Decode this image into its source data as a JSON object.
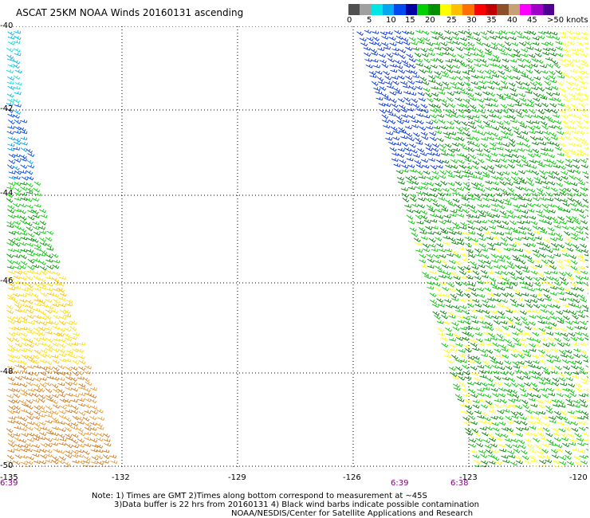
{
  "title": "ASCAT 25KM NOAA Winds 20160131 ascending",
  "legend": {
    "colors": [
      "#505050",
      "#a0a0a0",
      "#00e6e6",
      "#00a8f0",
      "#0048f0",
      "#0000a0",
      "#00d000",
      "#009000",
      "#ffff00",
      "#ffc000",
      "#ff7000",
      "#ff0000",
      "#c00000",
      "#8c5028",
      "#c8a078",
      "#ff00ff",
      "#a000c8",
      "#500090"
    ],
    "ticks": [
      "0",
      "5",
      "10",
      "15",
      "20",
      "25",
      "30",
      "35",
      "40",
      "45",
      ">50 knots"
    ]
  },
  "map": {
    "lat_labels": [
      "-40",
      "-42",
      "-44",
      "-46",
      "-48",
      "-50"
    ],
    "lon_labels": [
      "-135",
      "-132",
      "-129",
      "-126",
      "-123",
      "-120"
    ],
    "time_labels": [
      "6:39",
      "6:39",
      "6:38"
    ]
  },
  "notes": {
    "line1": "Note: 1) Times are GMT 2)Times along bottom correspond to measurement at ~45S",
    "line2": "3)Data buffer is 22 hrs from 20160131 4) Black wind barbs indicate possible contamination",
    "line3": "NOAA/NESDIS/Center for Satellite Applications and Research"
  }
}
